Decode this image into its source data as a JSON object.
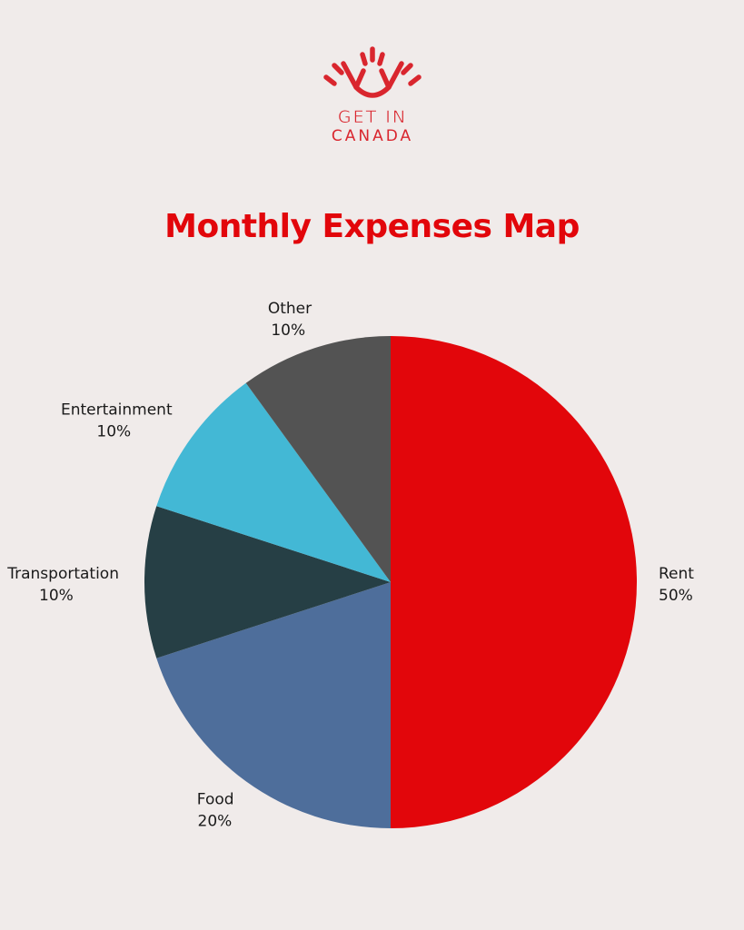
{
  "brand": {
    "line1": "GET IN",
    "line2": "CANADA",
    "icon": "sunrise-logo-icon",
    "color": "#d9262e"
  },
  "chart_data": {
    "type": "pie",
    "title": "Monthly Expenses Map",
    "start_angle_deg": 0,
    "direction": "clockwise",
    "legend": "none",
    "slices": [
      {
        "label": "Rent",
        "value": 50,
        "value_label": "50%",
        "color": "#e2060b"
      },
      {
        "label": "Food",
        "value": 20,
        "value_label": "20%",
        "color": "#4e6e9b"
      },
      {
        "label": "Transportation",
        "value": 10,
        "value_label": "10%",
        "color": "#263f45"
      },
      {
        "label": "Entertainment",
        "value": 10,
        "value_label": "10%",
        "color": "#43b8d5"
      },
      {
        "label": "Other",
        "value": 10,
        "value_label": "10%",
        "color": "#535353"
      }
    ]
  }
}
